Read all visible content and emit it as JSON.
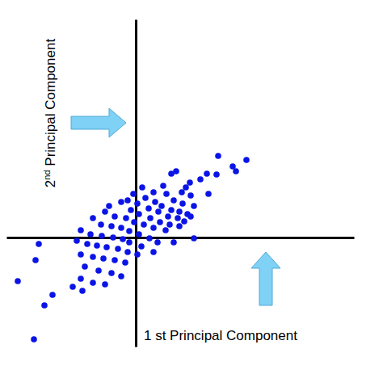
{
  "chart_data": {
    "type": "scatter",
    "x_label": "1 st Principal Component",
    "y_label": "2nd Principal Component",
    "xlim": [
      -16,
      27
    ],
    "ylim": [
      -13.5,
      27
    ],
    "tick_labels": false,
    "grid": false,
    "series": [
      {
        "color": "#0a14e6",
        "marker": "circle",
        "x": [
          10.2,
          13.7,
          12.0,
          12.4,
          8.8,
          10.0,
          4.4,
          5.0,
          8.0,
          6.7,
          6.2,
          9.0,
          3.4,
          5.7,
          6.8,
          0.8,
          2.2,
          3.8,
          4.7,
          5.8,
          7.2,
          1.2,
          2.4,
          3.2,
          4.4,
          5.4,
          6.4,
          -0.3,
          -1.0,
          0.2,
          1.6,
          2.8,
          4.0,
          5.2,
          6.0,
          -1.8,
          -3.3,
          -0.6,
          0.4,
          1.8,
          3.0,
          4.2,
          5.4,
          6.8,
          -3.8,
          -2.6,
          -1.2,
          -0.2,
          1.0,
          2.2,
          3.7,
          7.2,
          -5.3,
          -4.3,
          -3.0,
          -1.8,
          -0.8,
          0.4,
          1.7,
          2.7,
          4.7,
          -6.8,
          -5.6,
          -4.2,
          -2.8,
          -1.6,
          -0.8,
          0.7,
          2.2,
          -7.3,
          -6.0,
          -4.8,
          -3.6,
          -2.2,
          -1.0,
          0.2,
          -6.8,
          -5.3,
          -4.0,
          -2.6,
          -1.3,
          -6.3,
          -4.6,
          -3.0,
          -1.8,
          -6.8,
          -5.3,
          -3.8,
          -12.0,
          -12.4,
          -14.6,
          -10.3,
          -11.3,
          -12.6,
          -6.6,
          -7.8
        ],
        "values": [
          10.1,
          9.6,
          8.8,
          8.2,
          7.9,
          7.8,
          7.9,
          8.2,
          7.2,
          6.8,
          6.2,
          5.4,
          6.4,
          5.6,
          5.2,
          6.2,
          5.6,
          5.4,
          4.6,
          4.2,
          3.9,
          4.9,
          4.4,
          3.9,
          3.4,
          3.2,
          2.9,
          5.4,
          4.6,
          4.2,
          3.6,
          3.2,
          2.6,
          2.4,
          2.0,
          4.4,
          3.9,
          3.4,
          2.9,
          2.4,
          1.9,
          1.6,
          1.4,
          2.6,
          3.2,
          2.6,
          2.4,
          1.9,
          1.6,
          1.2,
          0.9,
          -0.1,
          2.4,
          1.6,
          1.4,
          1.2,
          0.8,
          0.4,
          -0.1,
          -0.6,
          -0.6,
          0.9,
          0.4,
          0.2,
          0.0,
          -0.2,
          -0.6,
          -1.1,
          -1.8,
          -0.4,
          -0.8,
          -1.0,
          -1.2,
          -1.4,
          -1.8,
          -2.1,
          -2.1,
          -2.4,
          -2.6,
          -2.8,
          -3.1,
          -3.6,
          -4.1,
          -4.4,
          -4.8,
          -5.1,
          -5.6,
          -5.8,
          -0.8,
          -2.8,
          -5.4,
          -7.1,
          -8.4,
          -12.6,
          -6.6,
          -6.1
        ]
      }
    ]
  }
}
